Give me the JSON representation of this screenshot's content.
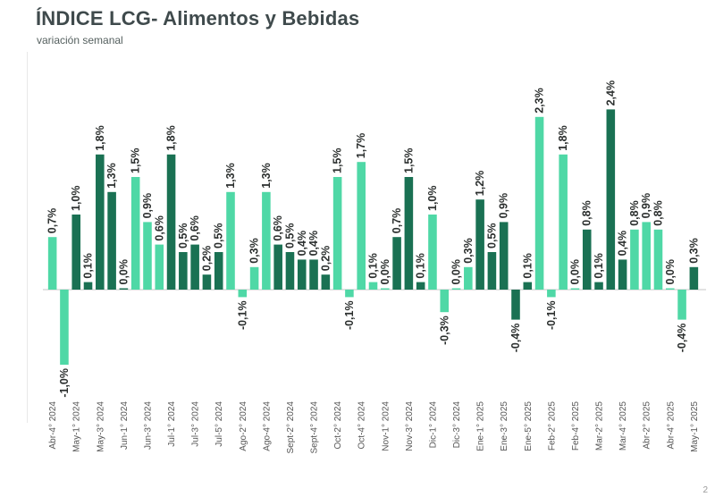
{
  "header": {
    "title": "ÍNDICE LCG- Alimentos y Bebidas",
    "subtitle": "variación semanal"
  },
  "page_number": "2",
  "colors": {
    "light": "#4fd8a6",
    "dark": "#1a7153",
    "axis": "#d9d9d9"
  },
  "chart_data": {
    "type": "bar",
    "title": "ÍNDICE LCG- Alimentos y Bebidas",
    "subtitle": "variación semanal",
    "xlabel": "",
    "ylabel": "",
    "ylim": [
      -1.3,
      2.6
    ],
    "categories": [
      "Abr-4° 2024",
      "",
      "May-1° 2024",
      "",
      "May-3° 2024",
      "",
      "Jun-1° 2024",
      "",
      "Jun-3° 2024",
      "",
      "Jul-1° 2024",
      "",
      "Jul-3° 2024",
      "",
      "Jul-5° 2024",
      "",
      "Ago-2° 2024",
      "",
      "Ago-4° 2024",
      "",
      "Sept-2° 2024",
      "",
      "Sept-4° 2024",
      "",
      "Oct-2° 2024",
      "",
      "Oct-4° 2024",
      "",
      "Nov-1° 2024",
      "",
      "Nov-3° 2024",
      "",
      "Dic-1° 2024",
      "",
      "Dic-3° 2024",
      "",
      "Ene-1° 2025",
      "",
      "Ene-3° 2025",
      "",
      "Ene-5° 2025",
      "",
      "Feb-2° 2025",
      "",
      "Feb-4° 2025",
      "",
      "Mar-2° 2025",
      "",
      "Mar-4° 2025",
      "",
      "Abr-2° 2025",
      "",
      "Abr-4° 2025",
      "",
      "May-1° 2025"
    ],
    "values": [
      0.7,
      -1.0,
      1.0,
      0.1,
      1.8,
      1.3,
      0.0,
      1.5,
      0.9,
      0.6,
      1.8,
      0.5,
      0.6,
      0.2,
      0.5,
      1.3,
      -0.1,
      0.3,
      1.3,
      0.6,
      0.5,
      0.4,
      0.4,
      0.2,
      1.5,
      -0.1,
      1.7,
      0.1,
      0.0,
      0.7,
      1.5,
      0.1,
      1.0,
      -0.3,
      0.0,
      0.3,
      1.2,
      0.5,
      0.9,
      -0.4,
      0.1,
      2.3,
      -0.1,
      1.8,
      0.0,
      0.8,
      0.1,
      2.4,
      0.4,
      0.8,
      0.9,
      0.8,
      0.0,
      -0.4,
      0.3
    ],
    "data_labels": [
      "0,7%",
      "-1,0%",
      "1,0%",
      "0,1%",
      "1,8%",
      "1,3%",
      "0,0%",
      "1,5%",
      "0,9%",
      "0,6%",
      "1,8%",
      "0,5%",
      "0,6%",
      "0,2%",
      "0,5%",
      "1,3%",
      "-0,1%",
      "0,3%",
      "1,3%",
      "0,6%",
      "0,5%",
      "0,4%",
      "0,4%",
      "0,2%",
      "1,5%",
      "-0,1%",
      "1,7%",
      "0,1%",
      "0,0%",
      "0,7%",
      "1,5%",
      "0,1%",
      "1,0%",
      "-0,3%",
      "0,0%",
      "0,3%",
      "1,2%",
      "0,5%",
      "0,9%",
      "-0,4%",
      "0,1%",
      "2,3%",
      "-0,1%",
      "1,8%",
      "0,0%",
      "0,8%",
      "0,1%",
      "2,4%",
      "0,4%",
      "0,8%",
      "0,9%",
      "0,8%",
      "0,0%",
      "-0,4%",
      "0,3%"
    ],
    "bar_color_keys": [
      "light",
      "light",
      "dark",
      "dark",
      "dark",
      "dark",
      "dark",
      "light",
      "light",
      "light",
      "dark",
      "dark",
      "dark",
      "dark",
      "dark",
      "light",
      "light",
      "light",
      "light",
      "dark",
      "dark",
      "dark",
      "dark",
      "dark",
      "light",
      "light",
      "light",
      "light",
      "light",
      "dark",
      "dark",
      "dark",
      "light",
      "light",
      "light",
      "light",
      "dark",
      "dark",
      "dark",
      "dark",
      "dark",
      "light",
      "light",
      "light",
      "light",
      "dark",
      "dark",
      "dark",
      "dark",
      "light",
      "light",
      "light",
      "light",
      "light",
      "dark"
    ],
    "grid": false,
    "legend": "none"
  }
}
